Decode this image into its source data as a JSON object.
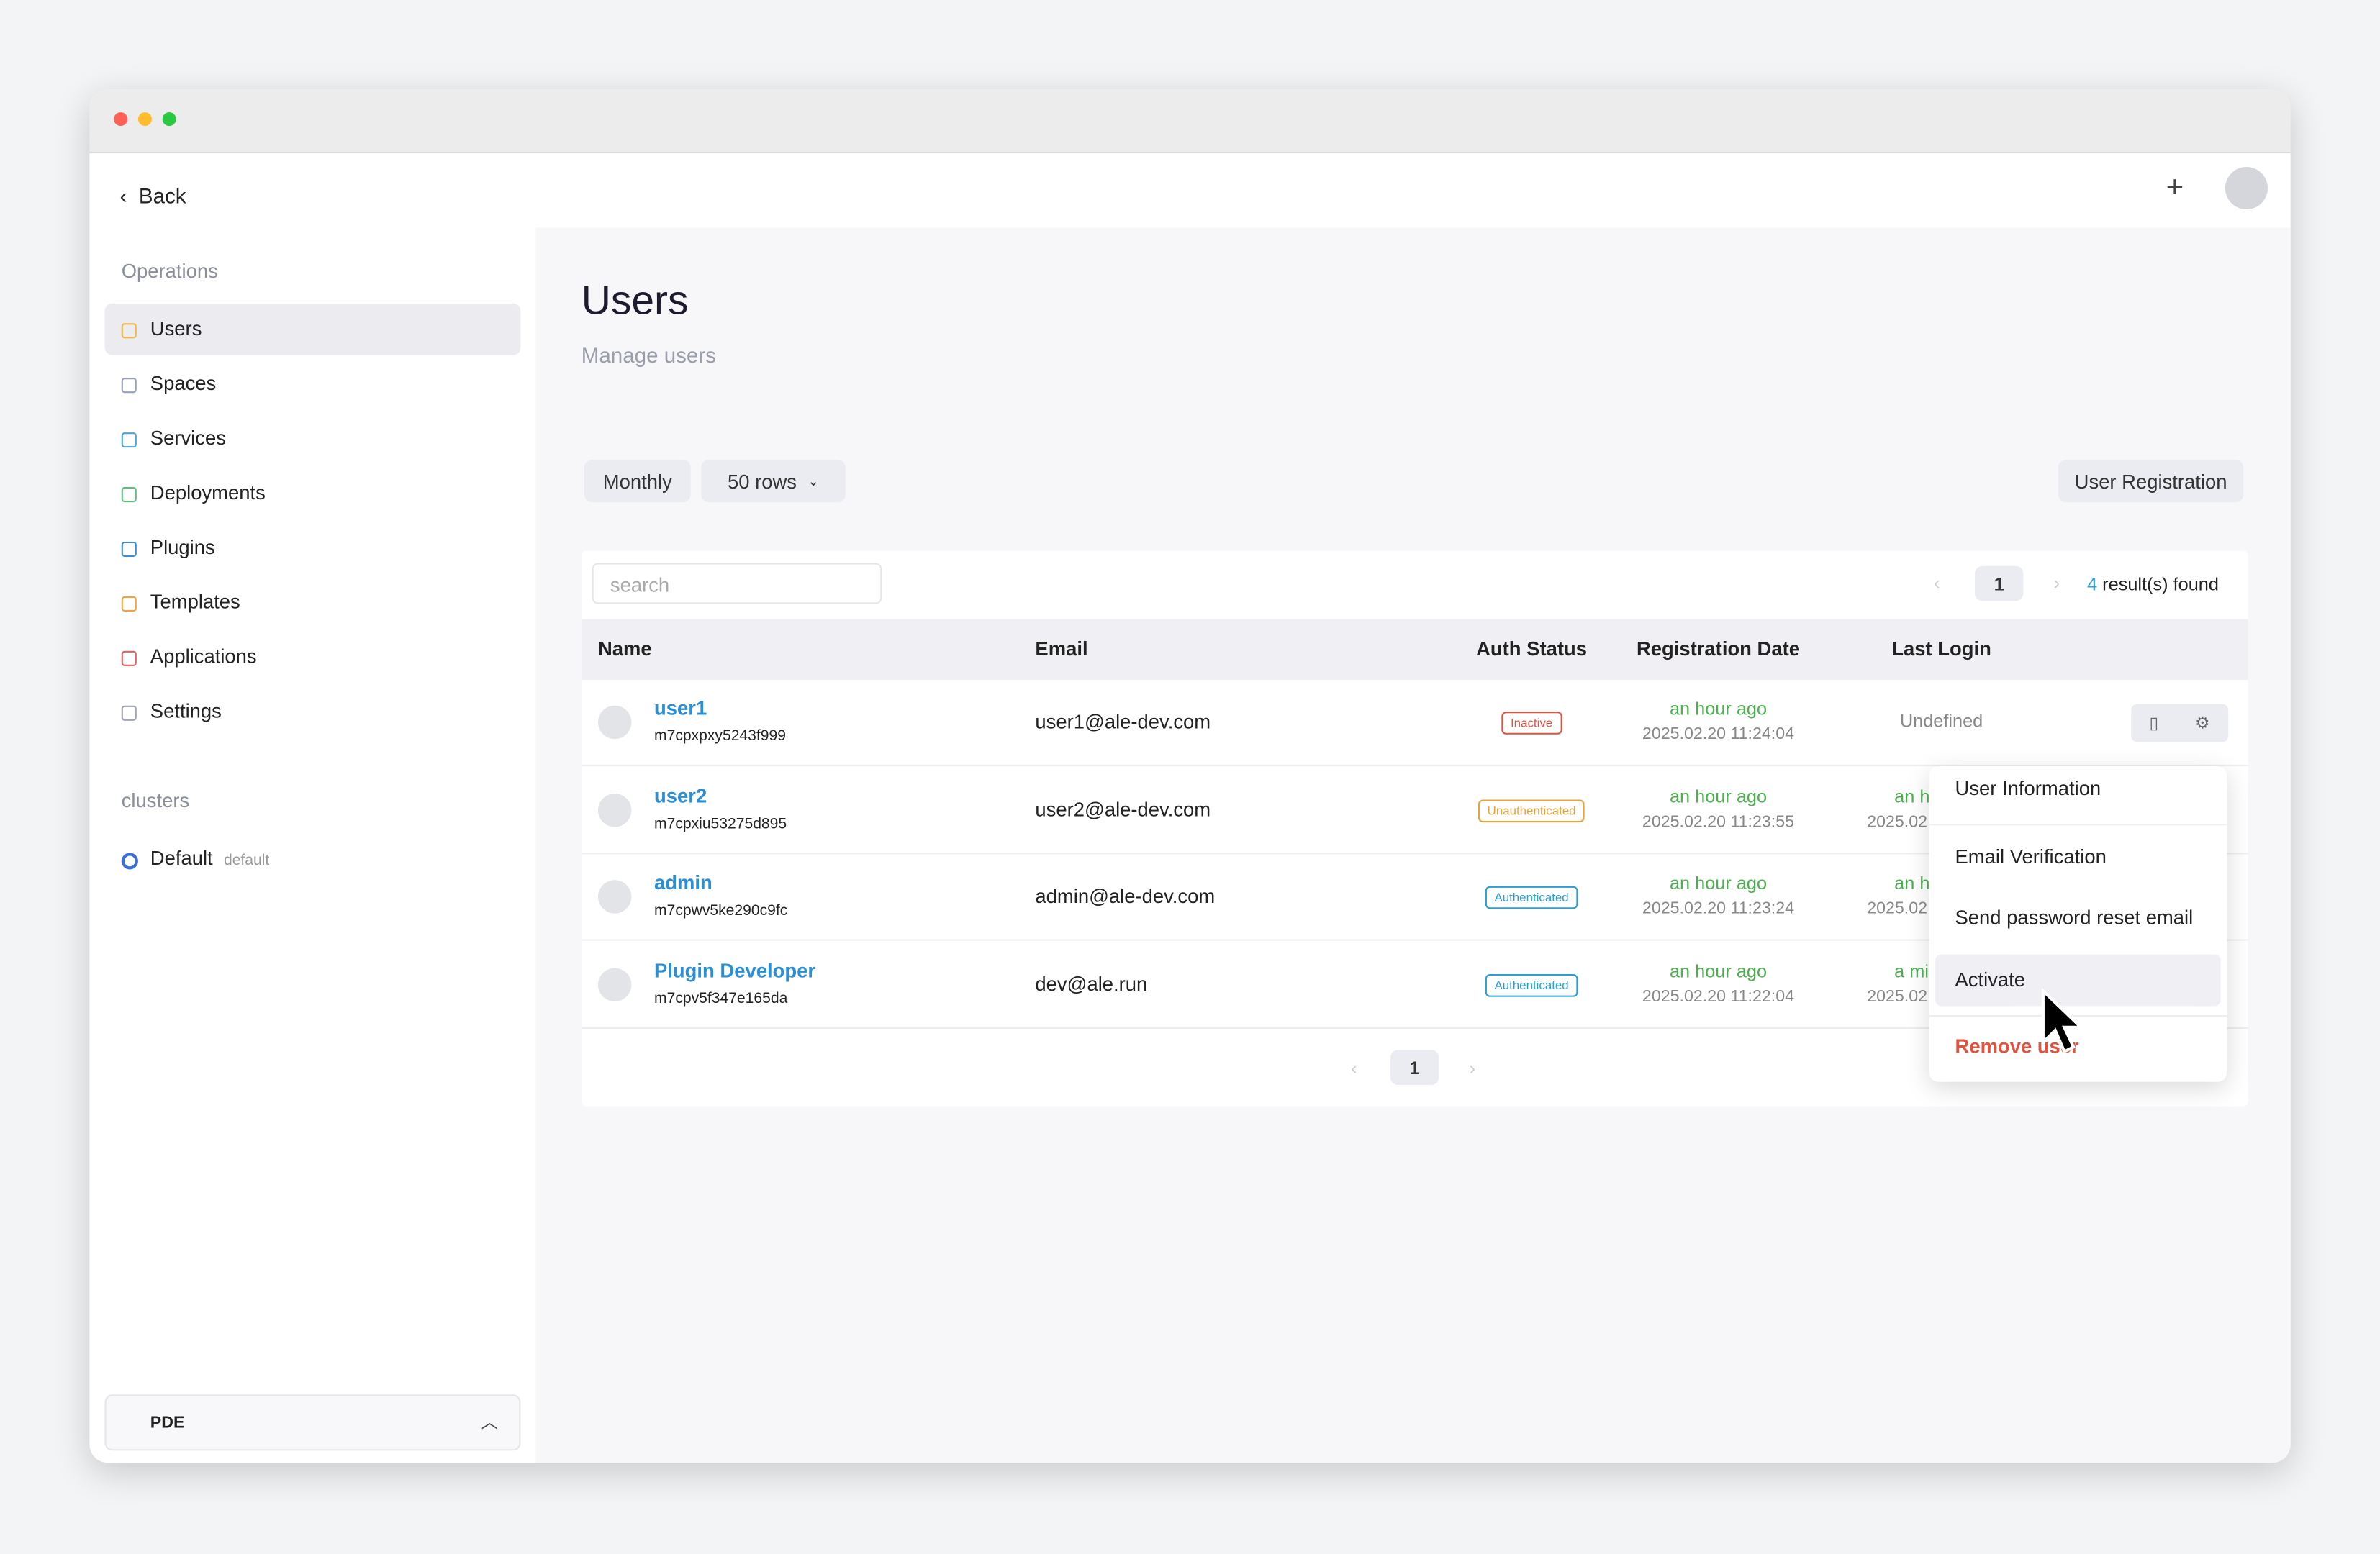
{
  "header": {
    "back": "Back"
  },
  "sidebar": {
    "section": "Operations",
    "items": [
      {
        "label": "Users",
        "color": "#f0b84c"
      },
      {
        "label": "Spaces",
        "color": "#9aa0b8"
      },
      {
        "label": "Services",
        "color": "#4aa3df"
      },
      {
        "label": "Deployments",
        "color": "#5cbf7a"
      },
      {
        "label": "Plugins",
        "color": "#3c8fd6"
      },
      {
        "label": "Templates",
        "color": "#f0a43c"
      },
      {
        "label": "Applications",
        "color": "#e06060"
      },
      {
        "label": "Settings",
        "color": "#a0a4b8"
      }
    ],
    "clusters_label": "clusters",
    "cluster": {
      "name": "Default",
      "tag": "default"
    },
    "footer": "PDE"
  },
  "page": {
    "title": "Users",
    "subtitle": "Manage users"
  },
  "toolbar": {
    "period": "Monthly",
    "rows": "50 rows",
    "register": "User Registration"
  },
  "table": {
    "search_placeholder": "search",
    "page": "1",
    "result_count": "4",
    "result_text": "result(s) found",
    "columns": [
      "Name",
      "Email",
      "Auth Status",
      "Registration Date",
      "Last Login"
    ],
    "rows": [
      {
        "name": "user1",
        "id": "m7cpxpxy5243f999",
        "email": "user1@ale-dev.com",
        "status": "Inactive",
        "status_color": "#e0533f",
        "reg_relative": "an hour ago",
        "reg_date": "2025.02.20 11:24:04",
        "last_login": "Undefined"
      },
      {
        "name": "user2",
        "id": "m7cpxiu53275d895",
        "email": "user2@ale-dev.com",
        "status": "Unauthenticated",
        "status_color": "#e8a33a",
        "reg_relative": "an hour ago",
        "reg_date": "2025.02.20 11:23:55",
        "last_login": "an h",
        "last_login_date": "2025.02"
      },
      {
        "name": "admin",
        "id": "m7cpwv5ke290c9fc",
        "email": "admin@ale-dev.com",
        "status": "Authenticated",
        "status_color": "#2a9fd6",
        "reg_relative": "an hour ago",
        "reg_date": "2025.02.20 11:23:24",
        "last_login": "an h",
        "last_login_date": "2025.02"
      },
      {
        "name": "Plugin Developer",
        "id": "m7cpv5f347e165da",
        "email": "dev@ale.run",
        "status": "Authenticated",
        "status_color": "#2a9fd6",
        "reg_relative": "an hour ago",
        "reg_date": "2025.02.20 11:22:04",
        "last_login": "a mi",
        "last_login_date": "2025.02"
      }
    ]
  },
  "menu": {
    "items": [
      "User Information",
      "Email Verification",
      "Send password reset email",
      "Activate",
      "Remove user"
    ]
  }
}
